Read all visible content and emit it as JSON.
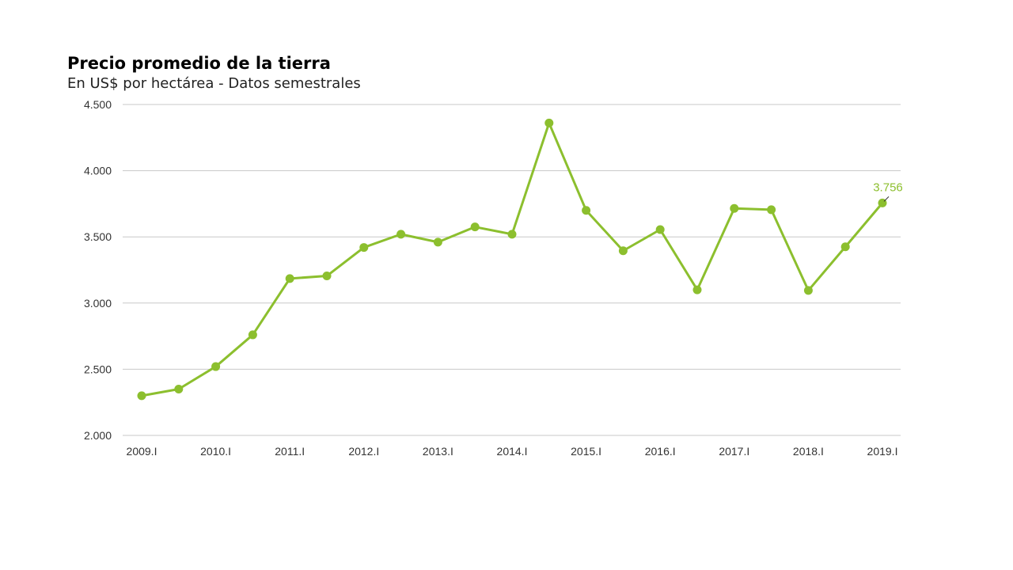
{
  "chart_data": {
    "type": "line",
    "title": "Precio promedio de la tierra",
    "subtitle": "En US$ por hectárea - Datos semestrales",
    "xlabel": "",
    "ylabel": "",
    "x": [
      "2009.I",
      "2009.II",
      "2010.I",
      "2010.II",
      "2011.I",
      "2011.II",
      "2012.I",
      "2012.II",
      "2013.I",
      "2013.II",
      "2014.I",
      "2014.II",
      "2015.I",
      "2015.II",
      "2016.I",
      "2016.II",
      "2017.I",
      "2017.II",
      "2018.I",
      "2018.II",
      "2019.I"
    ],
    "x_tick_labels": [
      "2009.I",
      "",
      "2010.I",
      "",
      "2011.I",
      "",
      "2012.I",
      "",
      "2013.I",
      "",
      "2014.I",
      "",
      "2015.I",
      "",
      "2016.I",
      "",
      "2017.I",
      "",
      "2018.I",
      "",
      "2019.I"
    ],
    "y_tick_labels": [
      "2.000",
      "2.500",
      "3.000",
      "3.500",
      "4.000",
      "4.500"
    ],
    "y_ticks": [
      2000,
      2500,
      3000,
      3500,
      4000,
      4500
    ],
    "ylim": [
      2000,
      4500
    ],
    "grid": true,
    "legend": "none",
    "series": [
      {
        "color": "#8cbf2e",
        "values": [
          2300,
          2350,
          2520,
          2760,
          3185,
          3205,
          3420,
          3520,
          3460,
          3575,
          3520,
          4360,
          3700,
          3395,
          3555,
          3100,
          3715,
          3705,
          3095,
          3425,
          3756
        ]
      }
    ],
    "annotations": [
      {
        "index": 20,
        "text": "3.756"
      }
    ]
  }
}
